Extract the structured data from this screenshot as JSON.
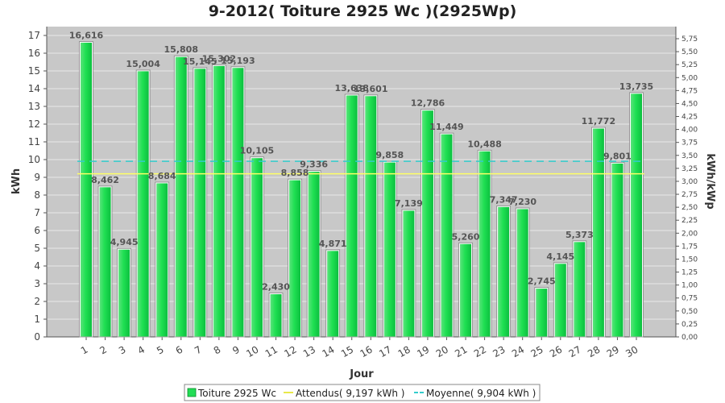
{
  "chart_data": {
    "type": "bar",
    "title": "9-2012( Toiture 2925 Wc )(2925Wp)",
    "xlabel": "Jour",
    "ylabel": "kWh",
    "ylabel_right": "kWh/kWp",
    "ylim": [
      0,
      17.5
    ],
    "ylim_right": [
      0,
      5.983
    ],
    "yticks": [
      "0",
      "1",
      "2",
      "3",
      "4",
      "5",
      "6",
      "7",
      "8",
      "9",
      "10",
      "11",
      "12",
      "13",
      "14",
      "15",
      "16",
      "17"
    ],
    "yticks_right": [
      "0,00",
      "0,25",
      "0,50",
      "0,75",
      "1,00",
      "1,25",
      "1,50",
      "1,75",
      "2,00",
      "2,25",
      "2,50",
      "2,75",
      "3,00",
      "3,25",
      "3,50",
      "3,75",
      "4,00",
      "4,25",
      "4,50",
      "4,75",
      "5,00",
      "5,25",
      "5,50",
      "5,75"
    ],
    "categories": [
      "1",
      "2",
      "3",
      "4",
      "5",
      "6",
      "7",
      "8",
      "9",
      "10",
      "11",
      "12",
      "13",
      "14",
      "15",
      "16",
      "17",
      "18",
      "19",
      "20",
      "21",
      "22",
      "23",
      "24",
      "25",
      "26",
      "27",
      "28",
      "29",
      "30"
    ],
    "series": [
      {
        "name": "Toiture 2925 Wc",
        "color": "#22dd55",
        "values": [
          16.616,
          8.462,
          4.945,
          15.004,
          8.684,
          15.808,
          15.145,
          15.302,
          15.193,
          10.105,
          2.43,
          8.858,
          9.336,
          4.871,
          13.638,
          13.601,
          9.858,
          7.139,
          12.786,
          11.449,
          5.26,
          10.488,
          7.347,
          7.23,
          2.745,
          4.145,
          5.373,
          11.772,
          9.801,
          13.735
        ],
        "labels": [
          "16,616",
          "8,462",
          "4,945",
          "15,004",
          "8,684",
          "15,808",
          "15,145",
          "15,302",
          "15,193",
          "10,105",
          "2,430",
          "8,858",
          "9,336",
          "4,871",
          "13,638",
          "13,601",
          "9,858",
          "7,139",
          "12,786",
          "11,449",
          "5,260",
          "10,488",
          "7,347",
          "7,230",
          "2,745",
          "4,145",
          "5,373",
          "11,772",
          "9,801",
          "13,735"
        ]
      }
    ],
    "reference_lines": [
      {
        "name": "Attendus( 9,197 kWh )",
        "value": 9.197,
        "color": "#ffff66"
      },
      {
        "name": "Moyenne( 9,904 kWh )",
        "value": 9.904,
        "color": "#33cccc"
      }
    ],
    "grid": true,
    "legend_position": "bottom",
    "colors": {
      "plot_bg": "#c8c8c8",
      "grid": "#e8e8e8",
      "bar": "#22dd55"
    }
  }
}
